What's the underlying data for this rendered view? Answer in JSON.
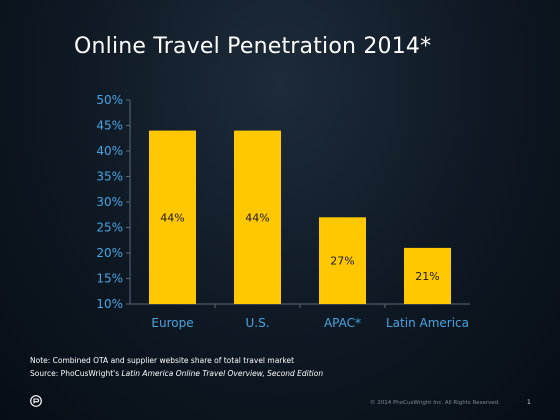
{
  "slide": {
    "title": "Online Travel Penetration 2014*",
    "note": "Note:  Combined OTA and supplier website share of total travel market",
    "source_prefix": "Source: PhoCusWright's ",
    "source_italic": "Latin America Online Travel Overview, Second Edition",
    "footer": "© 2014 PhoCusWright Inc.  All Rights Reserved.",
    "page_number": "1",
    "logo_icon": "speech-bubble-logo-icon"
  },
  "colors": {
    "bar": "#ffc800",
    "axis_text": "#4aa3df",
    "axis_line": "#5b6a78",
    "value_text": "#1a1a1a"
  },
  "chart_data": {
    "type": "bar",
    "title": "Online Travel Penetration 2014*",
    "categories": [
      "Europe",
      "U.S.",
      "APAC*",
      "Latin America"
    ],
    "values": [
      44,
      44,
      27,
      21
    ],
    "value_labels": [
      "44%",
      "44%",
      "27%",
      "21%"
    ],
    "ylim": [
      10,
      50
    ],
    "yticks": [
      10,
      15,
      20,
      25,
      30,
      35,
      40,
      45,
      50
    ],
    "ytick_labels": [
      "10%",
      "15%",
      "20%",
      "25%",
      "30%",
      "35%",
      "40%",
      "45%",
      "50%"
    ],
    "xlabel": "",
    "ylabel": "",
    "grid": false,
    "legend": "none"
  }
}
